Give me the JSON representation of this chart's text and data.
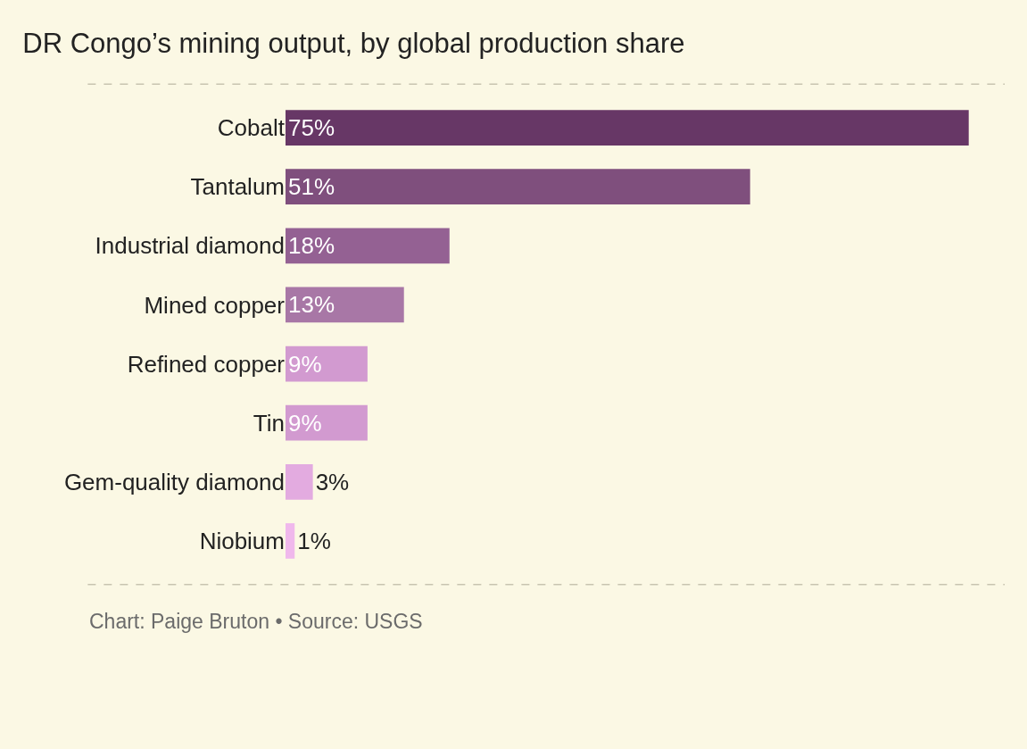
{
  "chart_data": {
    "type": "bar",
    "orientation": "horizontal",
    "title": "DR Congo’s mining output, by global production share",
    "categories": [
      "Cobalt",
      "Tantalum",
      "Industrial diamond",
      "Mined copper",
      "Refined copper",
      "Tin",
      "Gem-quality diamond",
      "Niobium"
    ],
    "values": [
      75,
      51,
      18,
      13,
      9,
      9,
      3,
      1
    ],
    "colors": [
      "#673766",
      "#7f4f7d",
      "#946193",
      "#a877a6",
      "#d29ad0",
      "#d29ad0",
      "#e3abe0",
      "#f0b8ec"
    ],
    "value_labels": [
      "75%",
      "51%",
      "18%",
      "13%",
      "9%",
      "9%",
      "3%",
      "1%"
    ],
    "annotations": [
      "Chart: Paige Bruton • Source: USGS"
    ]
  }
}
